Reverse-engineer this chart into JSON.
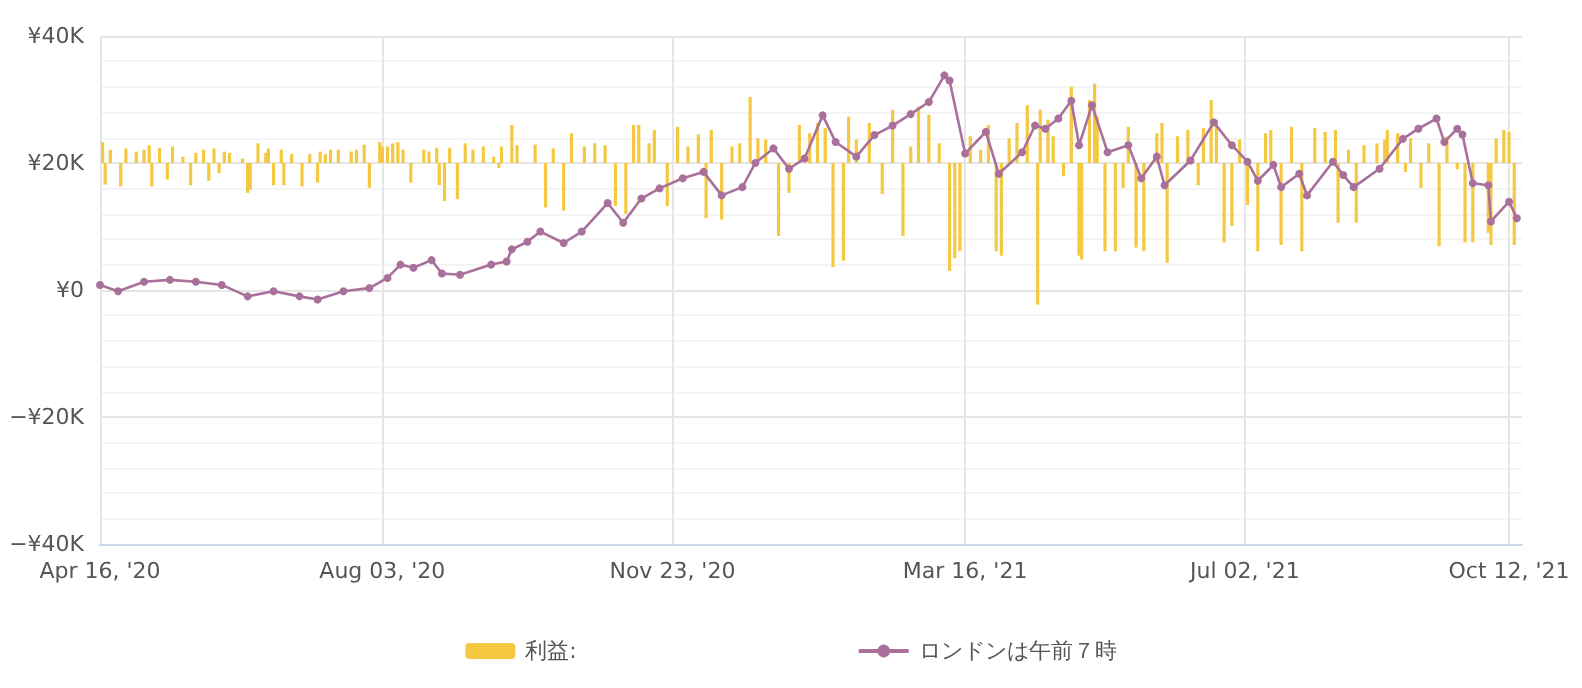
{
  "chart_data": {
    "type": "line",
    "xlim": [
      "2020-04-16",
      "2021-10-17"
    ],
    "xticks": [
      {
        "value": "2020-04-16",
        "label": "Apr 16, '20"
      },
      {
        "value": "2020-08-03",
        "label": "Aug 03, '20"
      },
      {
        "value": "2020-11-23",
        "label": "Nov 23, '20"
      },
      {
        "value": "2021-03-16",
        "label": "Mar 16, '21"
      },
      {
        "value": "2021-07-02",
        "label": "Jul 02, '21"
      },
      {
        "value": "2021-10-12",
        "label": "Oct 12, '21"
      }
    ],
    "ylim": [
      -40000,
      40000
    ],
    "yticks": [
      {
        "value": -40000,
        "label": "−¥40K"
      },
      {
        "value": -20000,
        "label": "−¥20K"
      },
      {
        "value": 0,
        "label": "¥0"
      },
      {
        "value": 20000,
        "label": "¥20K"
      },
      {
        "value": 40000,
        "label": "¥40K"
      }
    ],
    "grid": true,
    "legend": "bottom",
    "marker": "circle",
    "series": [
      {
        "name": "利益:",
        "type": "bar",
        "color": "#f5c842",
        "x": [
          "2020-04-17",
          "2020-04-18",
          "2020-04-20",
          "2020-04-24",
          "2020-04-26",
          "2020-04-30",
          "2020-05-03",
          "2020-05-05",
          "2020-05-06",
          "2020-05-09",
          "2020-05-12",
          "2020-05-14",
          "2020-05-18",
          "2020-05-21",
          "2020-05-23",
          "2020-05-26",
          "2020-05-28",
          "2020-05-30",
          "2020-06-01",
          "2020-06-03",
          "2020-06-05",
          "2020-06-10",
          "2020-06-12",
          "2020-06-13",
          "2020-06-16",
          "2020-06-19",
          "2020-06-20",
          "2020-06-22",
          "2020-06-25",
          "2020-06-26",
          "2020-06-29",
          "2020-07-03",
          "2020-07-06",
          "2020-07-09",
          "2020-07-10",
          "2020-07-12",
          "2020-07-14",
          "2020-07-17",
          "2020-07-22",
          "2020-07-24",
          "2020-07-27",
          "2020-07-29",
          "2020-08-02",
          "2020-08-03",
          "2020-08-05",
          "2020-08-07",
          "2020-08-09",
          "2020-08-11",
          "2020-08-14",
          "2020-08-19",
          "2020-08-21",
          "2020-08-24",
          "2020-08-25",
          "2020-08-27",
          "2020-08-29",
          "2020-09-01",
          "2020-09-04",
          "2020-09-07",
          "2020-09-11",
          "2020-09-15",
          "2020-09-17",
          "2020-09-18",
          "2020-09-22",
          "2020-09-24",
          "2020-10-01",
          "2020-10-05",
          "2020-10-08",
          "2020-10-12",
          "2020-10-15",
          "2020-10-20",
          "2020-10-24",
          "2020-10-28",
          "2020-11-01",
          "2020-11-05",
          "2020-11-08",
          "2020-11-10",
          "2020-11-14",
          "2020-11-16",
          "2020-11-21",
          "2020-11-25",
          "2020-11-29",
          "2020-12-03",
          "2020-12-06",
          "2020-12-08",
          "2020-12-12",
          "2020-12-16",
          "2020-12-19",
          "2020-12-23",
          "2020-12-26",
          "2020-12-29",
          "2021-01-03",
          "2021-01-07",
          "2021-01-11",
          "2021-01-15",
          "2021-01-18",
          "2021-01-21",
          "2021-01-24",
          "2021-01-28",
          "2021-01-30",
          "2021-02-02",
          "2021-02-07",
          "2021-02-12",
          "2021-02-16",
          "2021-02-20",
          "2021-02-23",
          "2021-02-26",
          "2021-03-02",
          "2021-03-06",
          "2021-03-10",
          "2021-03-12",
          "2021-03-14",
          "2021-03-18",
          "2021-03-22",
          "2021-03-25",
          "2021-03-28",
          "2021-03-30",
          "2021-04-02",
          "2021-04-05",
          "2021-04-09",
          "2021-04-13",
          "2021-04-14",
          "2021-04-17",
          "2021-04-19",
          "2021-04-23",
          "2021-04-26",
          "2021-04-29",
          "2021-04-30",
          "2021-05-03",
          "2021-05-05",
          "2021-05-06",
          "2021-05-09",
          "2021-05-13",
          "2021-05-16",
          "2021-05-18",
          "2021-05-21",
          "2021-05-24",
          "2021-05-29",
          "2021-05-31",
          "2021-06-02",
          "2021-06-06",
          "2021-06-10",
          "2021-06-14",
          "2021-06-16",
          "2021-06-19",
          "2021-06-21",
          "2021-06-24",
          "2021-06-27",
          "2021-06-30",
          "2021-07-03",
          "2021-07-07",
          "2021-07-10",
          "2021-07-12",
          "2021-07-16",
          "2021-07-20",
          "2021-07-24",
          "2021-07-29",
          "2021-08-02",
          "2021-08-06",
          "2021-08-07",
          "2021-08-11",
          "2021-08-14",
          "2021-08-17",
          "2021-08-22",
          "2021-08-25",
          "2021-08-26",
          "2021-08-30",
          "2021-09-02",
          "2021-09-04",
          "2021-09-08",
          "2021-09-11",
          "2021-09-15",
          "2021-09-18",
          "2021-09-22",
          "2021-09-25",
          "2021-09-28",
          "2021-10-04",
          "2021-10-05",
          "2021-10-07",
          "2021-10-10",
          "2021-10-12",
          "2021-10-14"
        ],
        "base": [
          20000,
          20000,
          20000,
          20000,
          20000,
          20000,
          20000,
          20000,
          20000,
          20000,
          20000,
          20000,
          20000,
          20000,
          20000,
          20000,
          20000,
          20000,
          20000,
          20000,
          20000,
          20000,
          20000,
          20000,
          20000,
          20000,
          20000,
          20000,
          20000,
          20000,
          20000,
          20000,
          20000,
          20000,
          20000,
          20000,
          20000,
          20000,
          20000,
          20000,
          20000,
          20000,
          20000,
          20000,
          20000,
          20000,
          20000,
          20000,
          20000,
          20000,
          20000,
          20000,
          20000,
          20000,
          20000,
          20000,
          20000,
          20000,
          20000,
          20000,
          20000,
          20000,
          20000,
          20000,
          20000,
          20000,
          20000,
          20000,
          20000,
          20000,
          20000,
          20000,
          20000,
          20000,
          20000,
          20000,
          20000,
          20000,
          20000,
          20000,
          20000,
          20000,
          20000,
          20000,
          20000,
          20000,
          20000,
          20000,
          20000,
          20000,
          20000,
          20000,
          20000,
          20000,
          20000,
          20000,
          20000,
          20000,
          20000,
          20000,
          20000,
          20000,
          20000,
          20000,
          20000,
          20000,
          20000,
          20000,
          20000,
          20000,
          20000,
          20000,
          20000,
          20000,
          20000,
          20000,
          20000,
          20000,
          20000,
          20000,
          20000,
          20000,
          20000,
          20000,
          20000,
          20000,
          20000,
          20000,
          20000,
          20000,
          20000,
          20000,
          20000,
          20000,
          20000,
          20000,
          20000,
          20000,
          20000,
          20000,
          20000,
          20000,
          20000,
          20000,
          20000,
          20000,
          20000,
          20000,
          20000,
          20000,
          20000,
          20000,
          20000,
          20000,
          20000,
          20000,
          20000,
          20000,
          20000,
          20000,
          20000,
          20000,
          20000,
          20000,
          20000,
          20000,
          20000,
          20000,
          20000,
          20000,
          20000,
          20000,
          20000,
          20000,
          20000,
          20000,
          20000,
          20000,
          20000,
          20000,
          20000
        ],
        "values": [
          3300,
          -3400,
          2100,
          -3700,
          2300,
          1800,
          2100,
          2800,
          -3700,
          2400,
          -2600,
          2600,
          1000,
          -3500,
          1600,
          2100,
          -2800,
          2300,
          -1600,
          1800,
          1600,
          700,
          -4700,
          -4200,
          3100,
          1600,
          2300,
          -3500,
          2100,
          -3500,
          1400,
          -3700,
          1400,
          -3100,
          1800,
          1400,
          2100,
          2100,
          1800,
          2100,
          2900,
          -3900,
          3300,
          2600,
          2600,
          3100,
          3300,
          2100,
          -3100,
          2100,
          1800,
          2400,
          -3500,
          -6000,
          2400,
          -5700,
          3100,
          2100,
          2600,
          1000,
          -800,
          2600,
          6000,
          2800,
          2900,
          -7000,
          2300,
          -7500,
          4700,
          2600,
          3100,
          2800,
          -6800,
          -8000,
          6000,
          6000,
          3100,
          5200,
          -6800,
          5700,
          2600,
          4500,
          -8700,
          5200,
          -8900,
          2600,
          3100,
          10400,
          3900,
          3700,
          -11500,
          -4700,
          6000,
          4700,
          6300,
          5500,
          -16400,
          -15400,
          7300,
          3700,
          6300,
          -4900,
          8400,
          -11500,
          2600,
          8900,
          7600,
          3100,
          -17000,
          -15000,
          -13900,
          4200,
          2100,
          6000,
          -13900,
          -14600,
          3900,
          6300,
          9100,
          -22300,
          8400,
          6800,
          4200,
          -2100,
          12000,
          -14600,
          -15200,
          9900,
          12500,
          7300,
          -13900,
          -13900,
          -3900,
          5700,
          -13300,
          -13900,
          4700,
          6300,
          -15700,
          4200,
          5200,
          -3500,
          5500,
          9900,
          6800,
          -12500,
          -9900,
          3700,
          -6600,
          -13900,
          4700,
          5200,
          -12900,
          5700,
          -13900,
          5500,
          4900,
          5200,
          -9400,
          2100,
          -9400,
          2800,
          3100,
          3700,
          5200,
          4700,
          -1400,
          3900,
          -3900,
          3100,
          -13100,
          4200,
          -1000,
          -12500,
          -12500,
          -11000,
          -12900,
          3900,
          5200,
          4900,
          -12900
        ]
      },
      {
        "name": "ロンドンは午前７時",
        "color": "#a8709a",
        "x": [
          "2020-04-16",
          "2020-04-23",
          "2020-05-03",
          "2020-05-13",
          "2020-05-23",
          "2020-06-02",
          "2020-06-12",
          "2020-06-22",
          "2020-07-02",
          "2020-07-09",
          "2020-07-19",
          "2020-07-29",
          "2020-08-05",
          "2020-08-10",
          "2020-08-15",
          "2020-08-22",
          "2020-08-26",
          "2020-09-02",
          "2020-09-14",
          "2020-09-20",
          "2020-09-22",
          "2020-09-28",
          "2020-10-03",
          "2020-10-12",
          "2020-10-19",
          "2020-10-29",
          "2020-11-04",
          "2020-11-11",
          "2020-11-18",
          "2020-11-27",
          "2020-12-05",
          "2020-12-12",
          "2020-12-20",
          "2020-12-25",
          "2021-01-01",
          "2021-01-07",
          "2021-01-13",
          "2021-01-20",
          "2021-01-25",
          "2021-02-02",
          "2021-02-09",
          "2021-02-16",
          "2021-02-23",
          "2021-03-02",
          "2021-03-08",
          "2021-03-10",
          "2021-03-16",
          "2021-03-24",
          "2021-03-29",
          "2021-04-07",
          "2021-04-12",
          "2021-04-16",
          "2021-04-21",
          "2021-04-26",
          "2021-04-29",
          "2021-05-04",
          "2021-05-10",
          "2021-05-18",
          "2021-05-23",
          "2021-05-29",
          "2021-06-01",
          "2021-06-11",
          "2021-06-20",
          "2021-06-27",
          "2021-07-03",
          "2021-07-07",
          "2021-07-13",
          "2021-07-16",
          "2021-07-23",
          "2021-07-26",
          "2021-08-05",
          "2021-08-09",
          "2021-08-13",
          "2021-08-23",
          "2021-09-01",
          "2021-09-07",
          "2021-09-14",
          "2021-09-17",
          "2021-09-22",
          "2021-09-24",
          "2021-09-28",
          "2021-10-04",
          "2021-10-05",
          "2021-10-12",
          "2021-10-15"
        ],
        "values": [
          800,
          -200,
          1300,
          1600,
          1300,
          800,
          -1000,
          -200,
          -1000,
          -1500,
          -200,
          300,
          1900,
          4000,
          3500,
          4700,
          2600,
          2400,
          4000,
          4500,
          6400,
          7600,
          9200,
          7400,
          9200,
          13700,
          10600,
          14400,
          16000,
          17600,
          18600,
          14900,
          16200,
          20000,
          22300,
          19100,
          20700,
          27500,
          23300,
          21000,
          24400,
          25900,
          27700,
          29600,
          33800,
          33000,
          21500,
          24900,
          18300,
          21700,
          25900,
          25400,
          27000,
          29800,
          22800,
          29100,
          21700,
          22800,
          17600,
          21000,
          16500,
          20400,
          26400,
          22800,
          20200,
          17200,
          19700,
          16200,
          18300,
          14900,
          20200,
          18100,
          16200,
          19100,
          23800,
          25400,
          27000,
          23300,
          25400,
          24500,
          16800,
          16500,
          10800,
          13900,
          11300
        ]
      }
    ]
  }
}
